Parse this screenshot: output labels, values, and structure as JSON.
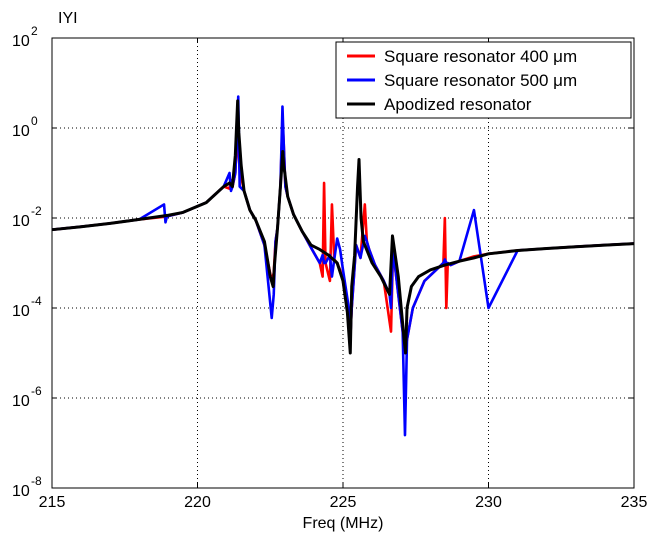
{
  "chart_data": {
    "type": "line",
    "title": "",
    "ylabel": "IYI",
    "xlabel": "Freq (MHz)",
    "xlim": [
      215,
      235
    ],
    "ylim": [
      1e-08,
      100
    ],
    "yscale": "log",
    "grid": true,
    "legend_position": "top-right",
    "x_ticks": [
      215,
      220,
      225,
      230,
      235
    ],
    "x_tick_labels": [
      "215",
      "220",
      "225",
      "230",
      "235"
    ],
    "y_ticks": [
      {
        "value": 1e-08,
        "base": "10",
        "exp": "-8"
      },
      {
        "value": 1e-06,
        "base": "10",
        "exp": "-6"
      },
      {
        "value": 0.0001,
        "base": "10",
        "exp": "-4"
      },
      {
        "value": 0.01,
        "base": "10",
        "exp": "-2"
      },
      {
        "value": 1,
        "base": "10",
        "exp": "0"
      },
      {
        "value": 100,
        "base": "10",
        "exp": "2"
      }
    ],
    "series": [
      {
        "name": "Square resonator  400 μm",
        "color": "#ff0000",
        "x": [
          215.0,
          216.0,
          217.0,
          218.0,
          218.85,
          218.9,
          218.95,
          219.5,
          220.3,
          220.9,
          221.1,
          221.15,
          221.2,
          221.3,
          221.35,
          221.4,
          221.45,
          221.6,
          221.8,
          222.0,
          222.3,
          222.55,
          222.62,
          222.68,
          222.75,
          222.85,
          222.92,
          222.96,
          223.02,
          223.1,
          223.3,
          223.6,
          223.9,
          224.2,
          224.3,
          224.35,
          224.4,
          224.55,
          224.62,
          224.7,
          224.8,
          224.9,
          225.0,
          225.2,
          225.25,
          225.3,
          225.45,
          225.6,
          225.75,
          225.82,
          225.9,
          226.1,
          226.4,
          226.6,
          226.65,
          226.72,
          226.9,
          227.05,
          227.13,
          227.2,
          227.4,
          227.8,
          228.2,
          228.45,
          228.5,
          228.55,
          228.6,
          228.7,
          229.0,
          229.5,
          230.0,
          231.0,
          232.0,
          233.0,
          234.0,
          235.0
        ],
        "y": [
          0.0055,
          0.0064,
          0.0076,
          0.0093,
          0.0106,
          0.0108,
          0.0109,
          0.0133,
          0.022,
          0.05,
          0.045,
          0.07,
          0.048,
          0.1,
          0.5,
          0.35,
          0.12,
          0.04,
          0.015,
          0.009,
          0.0025,
          0.0004,
          0.0006,
          0.003,
          0.006,
          0.05,
          1.5,
          0.5,
          0.05,
          0.03,
          0.012,
          0.005,
          0.0022,
          0.001,
          0.0005,
          0.06,
          0.001,
          0.0004,
          0.02,
          0.0012,
          0.001,
          0.0007,
          0.0004,
          5e-05,
          2e-05,
          0.0001,
          0.0025,
          0.0013,
          0.02,
          0.003,
          0.002,
          0.0009,
          0.0004,
          5e-05,
          3e-05,
          0.002,
          0.0002,
          3e-05,
          1e-05,
          2e-05,
          0.0001,
          0.0004,
          0.0007,
          0.001,
          0.01,
          0.0001,
          0.001,
          0.0009,
          0.0011,
          0.0014,
          0.0016,
          0.0019,
          0.0021,
          0.0023,
          0.0025,
          0.0027
        ]
      },
      {
        "name": "Square resonator  500 μm",
        "color": "#0000ff",
        "x": [
          215.0,
          216.0,
          217.0,
          218.0,
          218.85,
          218.9,
          218.95,
          219.5,
          220.3,
          220.9,
          221.1,
          221.15,
          221.2,
          221.3,
          221.35,
          221.4,
          221.45,
          221.6,
          221.8,
          222.0,
          222.3,
          222.55,
          222.62,
          222.68,
          222.75,
          222.85,
          222.92,
          222.96,
          223.02,
          223.1,
          223.3,
          223.6,
          223.9,
          224.2,
          224.3,
          224.35,
          224.4,
          224.55,
          224.62,
          224.7,
          224.8,
          224.9,
          225.0,
          225.2,
          225.25,
          225.3,
          225.45,
          225.6,
          225.75,
          225.82,
          225.9,
          226.1,
          226.4,
          226.6,
          226.65,
          226.72,
          226.9,
          227.05,
          227.13,
          227.2,
          227.4,
          227.8,
          228.2,
          228.45,
          228.5,
          228.55,
          228.6,
          228.7,
          229.0,
          229.5,
          230.0,
          231.0,
          232.0,
          233.0,
          234.0,
          235.0
        ],
        "y": [
          0.0055,
          0.0064,
          0.0076,
          0.0093,
          0.02,
          0.008,
          0.0109,
          0.0133,
          0.022,
          0.05,
          0.1,
          0.04,
          0.05,
          0.1,
          0.5,
          5.0,
          0.05,
          0.04,
          0.015,
          0.009,
          0.0025,
          6e-05,
          0.0002,
          0.003,
          0.006,
          0.05,
          3.0,
          0.5,
          0.05,
          0.03,
          0.012,
          0.005,
          0.0022,
          0.001,
          0.0015,
          0.001,
          0.001,
          0.0015,
          0.0005,
          0.0012,
          0.0035,
          0.002,
          0.0007,
          0.0001,
          2e-05,
          0.0001,
          0.0025,
          0.0013,
          0.004,
          0.003,
          0.002,
          0.0009,
          0.0004,
          0.0002,
          0.0001,
          0.002,
          0.0002,
          3e-05,
          1.5e-07,
          2e-05,
          0.0001,
          0.0004,
          0.0007,
          0.001,
          0.0012,
          0.001,
          0.001,
          0.0009,
          0.0011,
          0.015,
          0.0001,
          0.0019,
          0.0021,
          0.0023,
          0.0025,
          0.0027
        ]
      },
      {
        "name": "Apodized resonator",
        "color": "#000000",
        "x": [
          215.0,
          216.0,
          217.0,
          218.0,
          219.0,
          219.5,
          220.3,
          220.9,
          221.1,
          221.2,
          221.3,
          221.38,
          221.42,
          221.5,
          221.6,
          221.8,
          222.0,
          222.3,
          222.5,
          222.6,
          222.65,
          222.75,
          222.85,
          222.93,
          222.96,
          223.0,
          223.1,
          223.3,
          223.6,
          223.9,
          224.2,
          224.5,
          224.8,
          225.0,
          225.15,
          225.25,
          225.3,
          225.4,
          225.5,
          225.55,
          225.62,
          225.7,
          226.0,
          226.3,
          226.6,
          226.7,
          226.9,
          227.0,
          227.1,
          227.15,
          227.2,
          227.35,
          227.6,
          228.0,
          228.5,
          229.0,
          229.5,
          230.0,
          231.0,
          232.0,
          233.0,
          234.0,
          235.0
        ],
        "y": [
          0.0055,
          0.0064,
          0.0076,
          0.0093,
          0.0115,
          0.0133,
          0.022,
          0.05,
          0.06,
          0.05,
          0.25,
          4.0,
          0.8,
          0.15,
          0.04,
          0.015,
          0.009,
          0.003,
          0.0005,
          0.0003,
          0.001,
          0.006,
          0.05,
          0.3,
          0.15,
          0.1,
          0.03,
          0.012,
          0.005,
          0.0025,
          0.002,
          0.0015,
          0.001,
          0.0004,
          8e-05,
          1e-05,
          0.0003,
          0.0015,
          0.05,
          0.2,
          0.01,
          0.003,
          0.001,
          0.0005,
          0.0002,
          0.004,
          0.0005,
          0.0001,
          2e-05,
          1e-05,
          0.0001,
          0.0003,
          0.0005,
          0.0007,
          0.0009,
          0.0011,
          0.0013,
          0.0016,
          0.0019,
          0.0021,
          0.0023,
          0.0025,
          0.0027
        ]
      }
    ]
  }
}
